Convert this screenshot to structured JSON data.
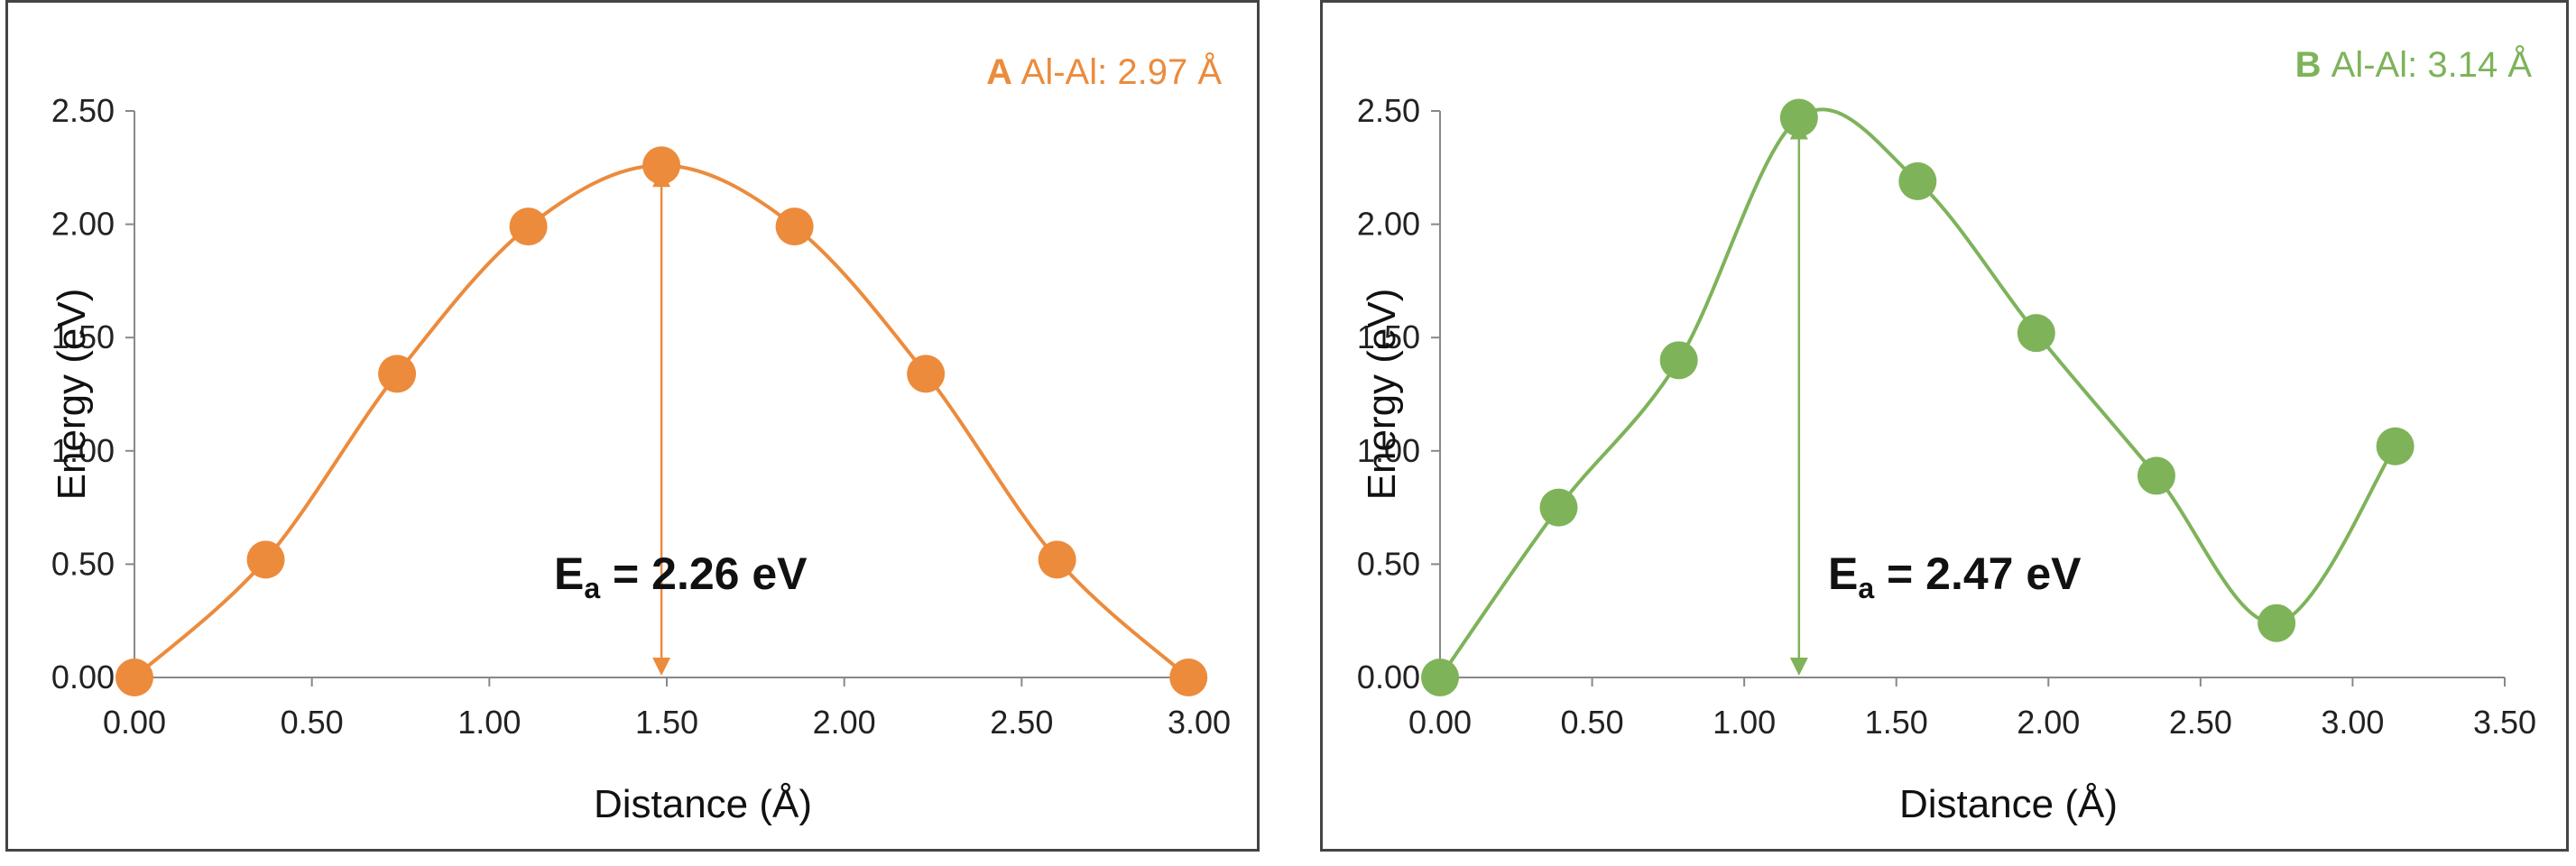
{
  "chart_data": [
    {
      "type": "line",
      "panel_letter": "A",
      "subtitle": "Al-Al: 2.97 Å",
      "color": "#EC8B3C",
      "xlabel": "Distance (Å)",
      "ylabel": "Energy (eV)",
      "xlim": [
        0,
        3.0
      ],
      "ylim": [
        0,
        2.5
      ],
      "x_ticks": [
        "0.00",
        "0.50",
        "1.00",
        "1.50",
        "2.00",
        "2.50",
        "3.00"
      ],
      "y_ticks": [
        "0.00",
        "0.50",
        "1.00",
        "1.50",
        "2.00",
        "2.50"
      ],
      "series": [
        {
          "name": "Al-Al: 2.97 Å",
          "x": [
            0.0,
            0.37,
            0.74,
            1.11,
            1.485,
            1.86,
            2.23,
            2.6,
            2.97
          ],
          "y": [
            0.0,
            0.52,
            1.34,
            1.99,
            2.26,
            1.99,
            1.34,
            0.52,
            0.0
          ]
        }
      ],
      "annotation": {
        "E": "E",
        "sub": "a",
        "rest": " = 2.26 eV",
        "arrow_x": 1.485,
        "arrow_from": 0.0,
        "arrow_to": 2.26
      }
    },
    {
      "type": "line",
      "panel_letter": "B",
      "subtitle": "Al-Al: 3.14 Å",
      "color": "#7EB35A",
      "xlabel": "Distance (Å)",
      "ylabel": "Energy (eV)",
      "xlim": [
        0,
        3.5
      ],
      "ylim": [
        0,
        2.5
      ],
      "x_ticks": [
        "0.00",
        "0.50",
        "1.00",
        "1.50",
        "2.00",
        "2.50",
        "3.00",
        "3.50"
      ],
      "y_ticks": [
        "0.00",
        "0.50",
        "1.00",
        "1.50",
        "2.00",
        "2.50"
      ],
      "series": [
        {
          "name": "Al-Al: 3.14 Å",
          "x": [
            0.0,
            0.39,
            0.785,
            1.18,
            1.57,
            1.96,
            2.355,
            2.75,
            3.14
          ],
          "y": [
            0.0,
            0.75,
            1.4,
            2.47,
            2.19,
            1.52,
            0.89,
            0.24,
            1.02
          ]
        }
      ],
      "annotation": {
        "E": "E",
        "sub": "a",
        "rest": " = 2.47 eV",
        "arrow_x": 1.18,
        "arrow_from": 0.0,
        "arrow_to": 2.47
      }
    }
  ]
}
